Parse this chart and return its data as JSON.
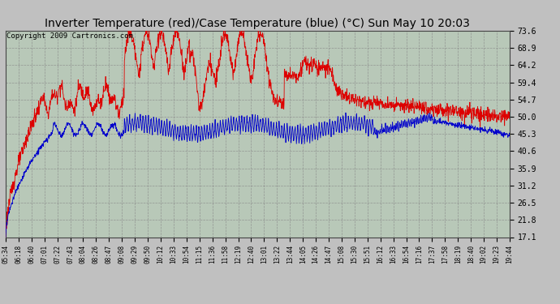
{
  "title": "Inverter Temperature (red)/Case Temperature (blue) (°C) Sun May 10 20:03",
  "copyright": "Copyright 2009 Cartronics.com",
  "yticks": [
    17.1,
    21.8,
    26.5,
    31.2,
    35.9,
    40.6,
    45.3,
    50.0,
    54.7,
    59.4,
    64.2,
    68.9,
    73.6
  ],
  "ymin": 17.1,
  "ymax": 73.6,
  "xtick_labels": [
    "05:34",
    "06:18",
    "06:40",
    "07:01",
    "07:22",
    "07:43",
    "08:04",
    "08:26",
    "08:47",
    "09:08",
    "09:29",
    "09:50",
    "10:12",
    "10:33",
    "10:54",
    "11:15",
    "11:36",
    "11:58",
    "12:19",
    "12:40",
    "13:01",
    "13:22",
    "13:44",
    "14:05",
    "14:26",
    "14:47",
    "15:08",
    "15:30",
    "15:51",
    "16:12",
    "16:33",
    "16:54",
    "17:16",
    "17:37",
    "17:58",
    "18:19",
    "18:40",
    "19:02",
    "19:23",
    "19:44"
  ],
  "bg_color": "#c0c0c0",
  "plot_bg": "#b8c8b8",
  "grid_color": "#888888",
  "red_color": "#dd0000",
  "blue_color": "#0000cc",
  "title_fontsize": 10,
  "copyright_fontsize": 6.5
}
